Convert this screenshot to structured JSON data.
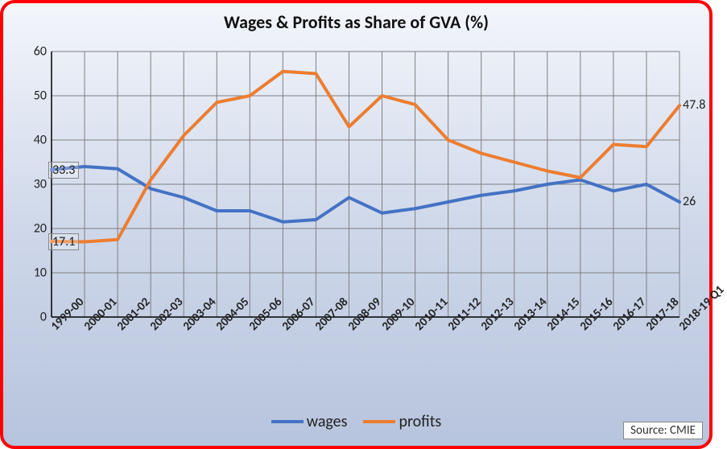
{
  "chart": {
    "type": "line",
    "title": "Wages & Profits as Share of GVA (%)",
    "title_fontsize": 22,
    "categories": [
      "1999-00",
      "2000-01",
      "2001-02",
      "2002-03",
      "2003-04",
      "2004-05",
      "2005-06",
      "2006-07",
      "2007-08",
      "2008-09",
      "2009-10",
      "2010-11",
      "2011-12",
      "2012-13",
      "2013-14",
      "2014-15",
      "2015-16",
      "2016-17",
      "2017-18",
      "2018-19 Q1"
    ],
    "series": [
      {
        "name": "wages",
        "color": "#4472c4",
        "line_width": 4,
        "values": [
          33.3,
          34,
          33.5,
          29,
          27,
          24,
          24,
          21.5,
          22,
          27,
          23.5,
          24.5,
          26,
          27.5,
          28.5,
          30,
          31,
          28.5,
          30,
          26
        ],
        "first_label": "33.3",
        "last_label": "26"
      },
      {
        "name": "profits",
        "color": "#ed7d31",
        "line_width": 4,
        "values": [
          17.1,
          17,
          17.5,
          31,
          41,
          48.5,
          50,
          55.5,
          55,
          43,
          50,
          48,
          40,
          37,
          35,
          33,
          31.5,
          39,
          38.5,
          47.8
        ],
        "first_label": "17.1",
        "last_label": "47.8"
      }
    ],
    "ylim": [
      0,
      60
    ],
    "ytick_step": 10,
    "axis_fontsize": 16,
    "xtick_fontsize": 15,
    "xtick_rotation": -45,
    "grid_color": "#7f7f7f",
    "axis_color": "#000000",
    "background": {
      "gradient_from": "#f3f6fb",
      "gradient_mid": "#cfd8ea",
      "gradient_to": "#b7c4dd"
    },
    "border_color": "#ff0000",
    "border_width": 4,
    "border_radius": 18,
    "legend": {
      "position": "bottom-center",
      "fontsize": 20,
      "swatch_width": 40,
      "swatch_height": 4
    },
    "source_label": "Source: CMIE"
  }
}
